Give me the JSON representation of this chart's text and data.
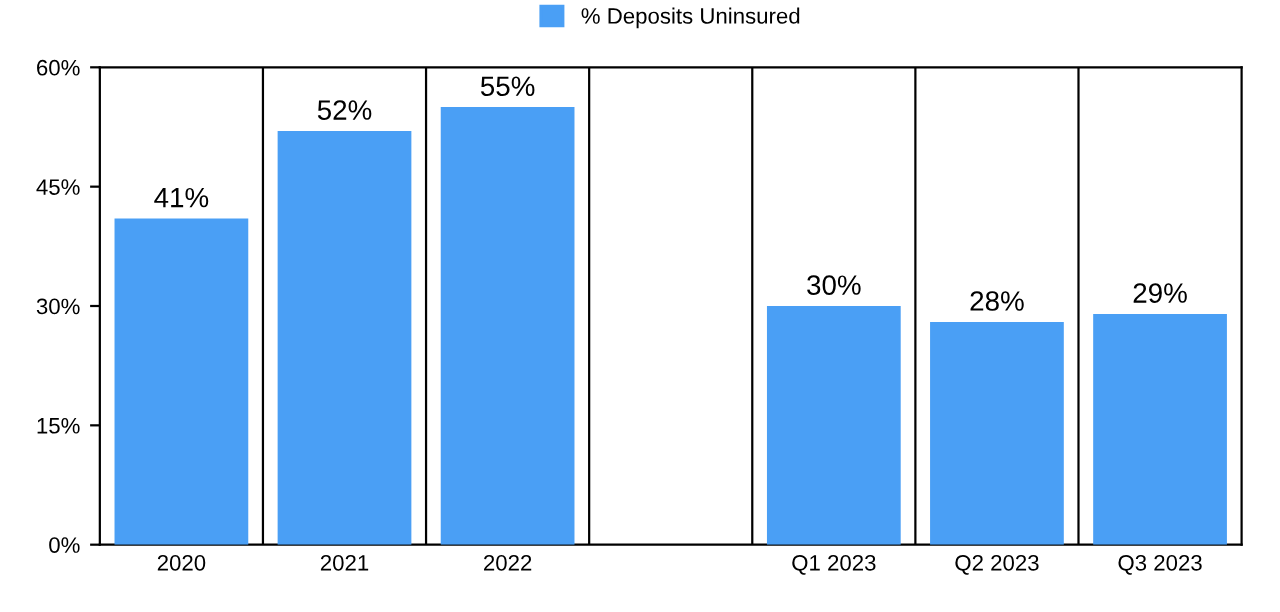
{
  "chart_data": {
    "type": "bar",
    "categories": [
      "2020",
      "2021",
      "2022",
      null,
      "Q1 2023",
      "Q2 2023",
      "Q3 2023"
    ],
    "series": [
      {
        "name": "% Deposits Uninsured",
        "color": "#4a9ff5",
        "values": [
          41,
          52,
          55,
          null,
          30,
          28,
          29
        ],
        "value_labels": [
          "41%",
          "52%",
          "55%",
          null,
          "30%",
          "28%",
          "29%"
        ]
      }
    ],
    "ylim": [
      0,
      60
    ],
    "yticks": [
      {
        "value": 0,
        "label": "0%"
      },
      {
        "value": 15,
        "label": "15%"
      },
      {
        "value": 30,
        "label": "30%"
      },
      {
        "value": 45,
        "label": "45%"
      },
      {
        "value": 60,
        "label": "60%"
      }
    ],
    "grid": "x",
    "legend": "top"
  }
}
